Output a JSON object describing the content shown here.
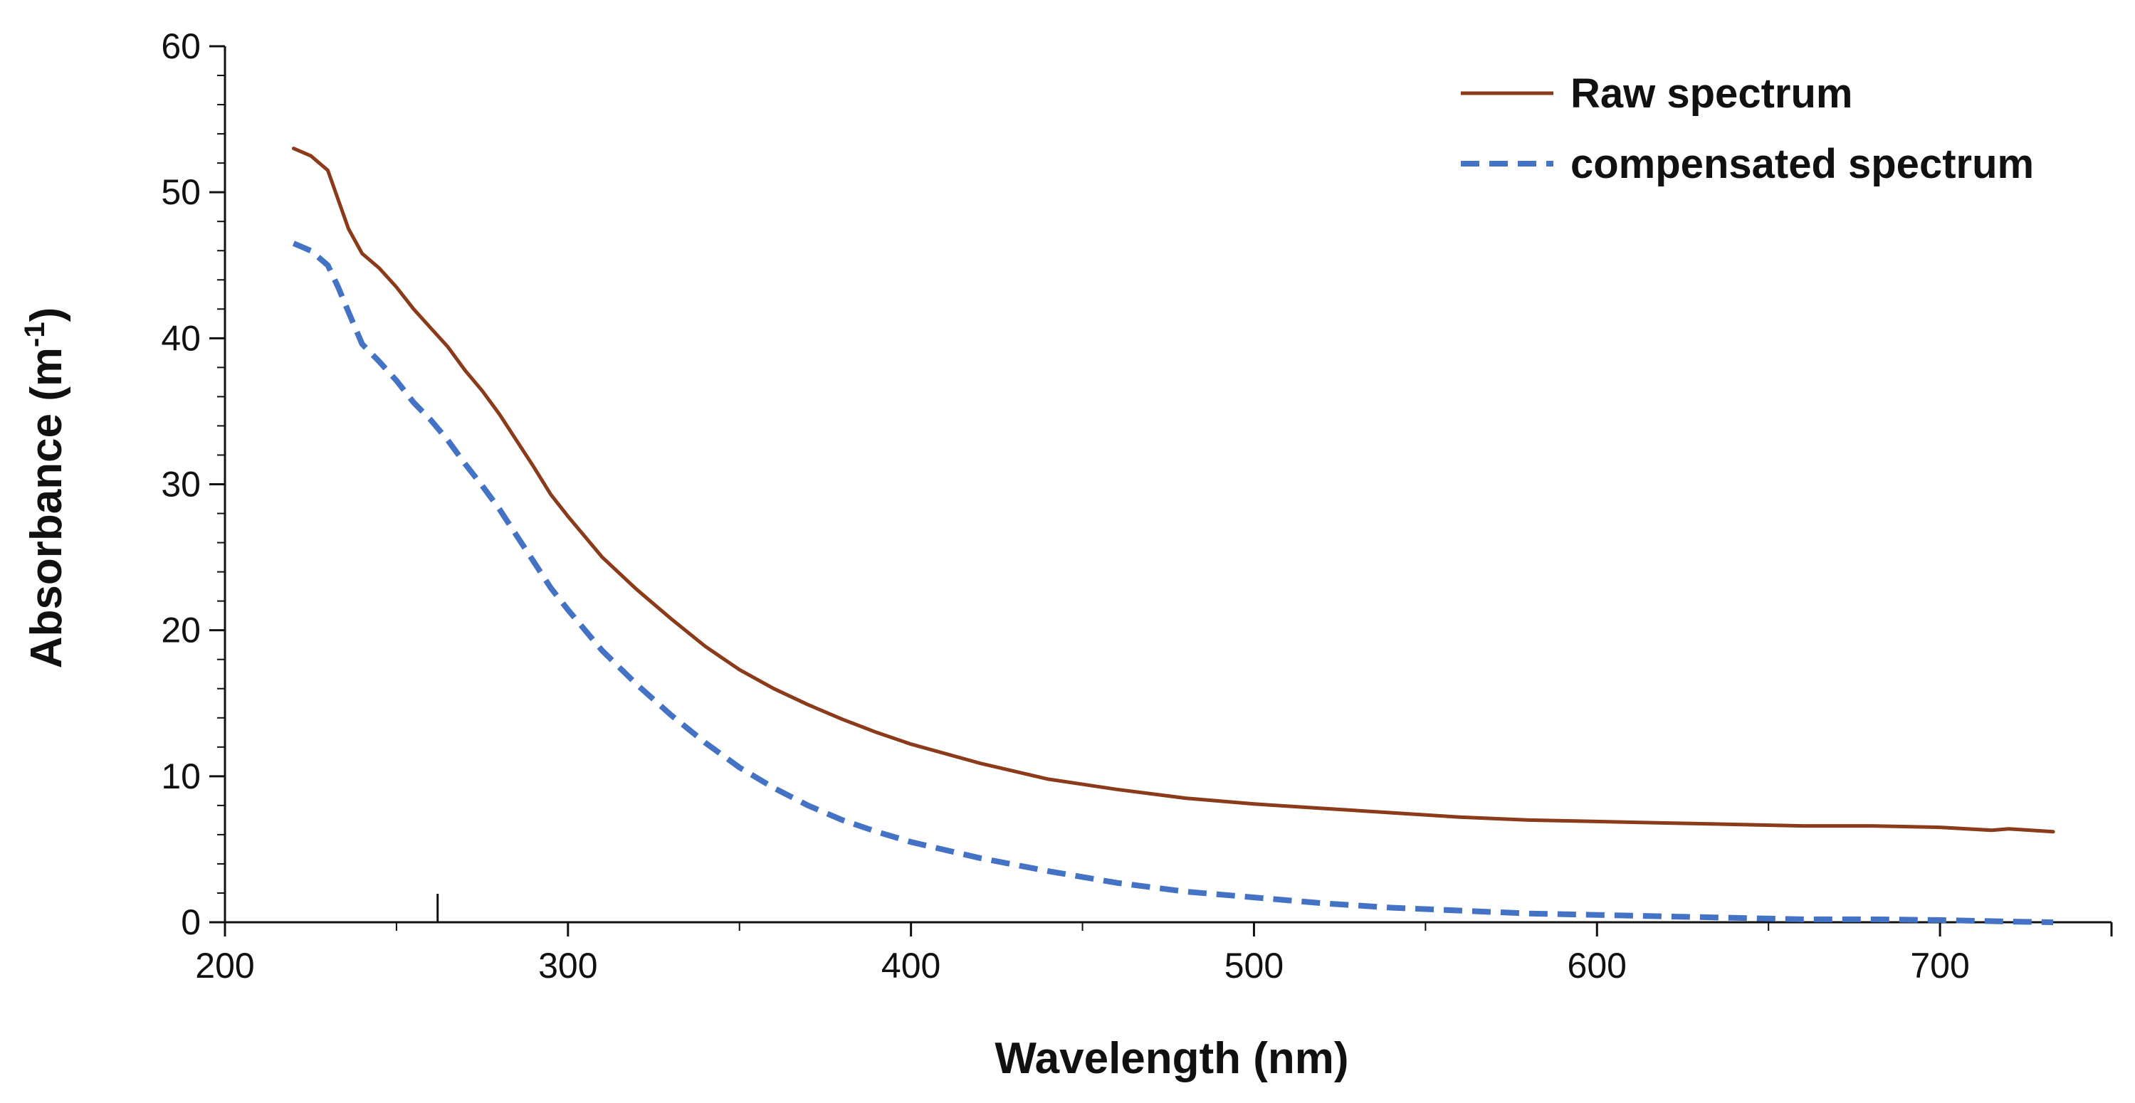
{
  "chart_data": {
    "type": "line",
    "title": "",
    "xlabel": "Wavelength (nm)",
    "ylabel_main": "Absorbance (m",
    "ylabel_sup": "-1",
    "ylabel_close": ")",
    "xlim": [
      200,
      750
    ],
    "ylim": [
      0,
      60
    ],
    "x_ticks": [
      200,
      300,
      400,
      500,
      600,
      700
    ],
    "x_tick_labels": [
      "200",
      "300",
      "400",
      "500",
      "600",
      "700"
    ],
    "y_ticks": [
      0,
      10,
      20,
      30,
      40,
      50,
      60
    ],
    "y_tick_labels": [
      "0",
      "10",
      "20",
      "30",
      "40",
      "50",
      "60"
    ],
    "grid": false,
    "legend_position": "top-right",
    "series": [
      {
        "name": "Raw spectrum",
        "color": "#8B3A1A",
        "style": "solid",
        "x": [
          220,
          225,
          230,
          233,
          236,
          240,
          245,
          250,
          255,
          260,
          265,
          270,
          275,
          280,
          285,
          290,
          295,
          300,
          310,
          320,
          330,
          340,
          350,
          360,
          370,
          380,
          390,
          400,
          420,
          440,
          460,
          480,
          500,
          520,
          540,
          560,
          580,
          600,
          620,
          640,
          660,
          680,
          700,
          715,
          720,
          733
        ],
        "y": [
          53.0,
          52.5,
          51.5,
          49.5,
          47.5,
          45.8,
          44.8,
          43.5,
          42.0,
          40.7,
          39.4,
          37.8,
          36.4,
          34.8,
          33.0,
          31.2,
          29.3,
          27.8,
          25.0,
          22.8,
          20.8,
          18.9,
          17.3,
          16.0,
          14.9,
          13.9,
          13.0,
          12.2,
          10.9,
          9.8,
          9.1,
          8.5,
          8.1,
          7.8,
          7.5,
          7.2,
          7.0,
          6.9,
          6.8,
          6.7,
          6.6,
          6.6,
          6.5,
          6.3,
          6.4,
          6.2
        ]
      },
      {
        "name": "compensated spectrum",
        "color": "#4472C4",
        "style": "dashed",
        "x": [
          220,
          225,
          230,
          233,
          236,
          240,
          245,
          250,
          255,
          260,
          265,
          270,
          275,
          280,
          285,
          290,
          295,
          300,
          310,
          320,
          330,
          340,
          350,
          360,
          370,
          380,
          390,
          400,
          420,
          440,
          460,
          480,
          500,
          520,
          540,
          560,
          580,
          600,
          620,
          640,
          660,
          680,
          700,
          720,
          733
        ],
        "y": [
          46.5,
          46.0,
          45.0,
          43.5,
          41.8,
          39.6,
          38.4,
          37.1,
          35.6,
          34.4,
          33.0,
          31.4,
          29.9,
          28.3,
          26.5,
          24.7,
          22.9,
          21.4,
          18.6,
          16.3,
          14.2,
          12.3,
          10.6,
          9.2,
          8.0,
          7.0,
          6.2,
          5.5,
          4.4,
          3.5,
          2.7,
          2.1,
          1.7,
          1.3,
          1.0,
          0.8,
          0.6,
          0.5,
          0.4,
          0.3,
          0.2,
          0.2,
          0.15,
          0.05,
          0.0
        ]
      }
    ],
    "annotation_x": 262
  }
}
